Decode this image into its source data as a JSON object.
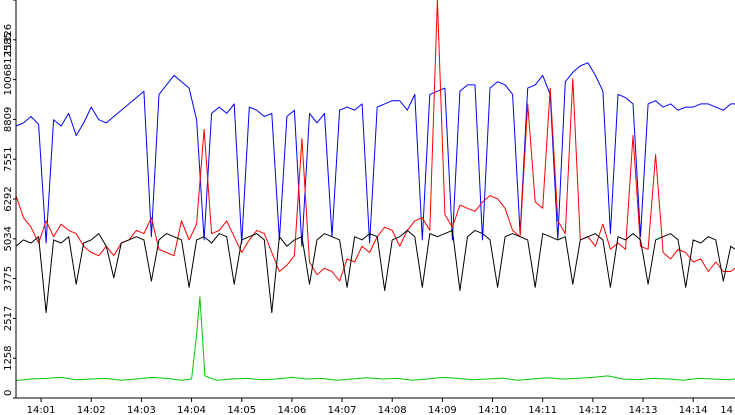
{
  "chart_data": {
    "type": "line",
    "title": "",
    "xlabel": "",
    "ylabel": "",
    "xlim": [
      "14:00:30",
      "14:14:50"
    ],
    "ylim": [
      0,
      12585
    ],
    "grid": false,
    "legend": "none",
    "x_ticks": [
      "14:01",
      "14:02",
      "14:03",
      "14:04",
      "14:05",
      "14:06",
      "14:07",
      "14:08",
      "14:09",
      "14:10",
      "14:11",
      "14:12",
      "14:13",
      "14:14",
      "14"
    ],
    "y_ticks": [
      "0",
      "1258",
      "2517",
      "3775",
      "5034",
      "6292",
      "7551",
      "8809",
      "10068",
      "11326",
      "12585"
    ],
    "series": [
      {
        "color": "#0000ff",
        "x": [
          "14:00:30",
          "14:00:39",
          "14:00:48",
          "14:00:57",
          "14:01:06",
          "14:01:15",
          "14:01:24",
          "14:01:33",
          "14:01:42",
          "14:01:51",
          "14:02:00",
          "14:02:09",
          "14:02:18",
          "14:02:27",
          "14:02:36",
          "14:02:45",
          "14:02:54",
          "14:03:03",
          "14:03:12",
          "14:03:21",
          "14:03:30",
          "14:03:39",
          "14:03:48",
          "14:03:57",
          "14:04:06",
          "14:04:15",
          "14:04:24",
          "14:04:33",
          "14:04:42",
          "14:04:51",
          "14:05:00",
          "14:05:09",
          "14:05:18",
          "14:05:27",
          "14:05:36",
          "14:05:45",
          "14:05:54",
          "14:06:03",
          "14:06:12",
          "14:06:21",
          "14:06:30",
          "14:06:39",
          "14:06:48",
          "14:06:57",
          "14:07:06",
          "14:07:15",
          "14:07:24",
          "14:07:33",
          "14:07:42",
          "14:07:51",
          "14:08:00",
          "14:08:09",
          "14:08:18",
          "14:08:27",
          "14:08:36",
          "14:08:45",
          "14:08:54",
          "14:09:03",
          "14:09:12",
          "14:09:21",
          "14:09:30",
          "14:09:39",
          "14:09:48",
          "14:09:57",
          "14:10:06",
          "14:10:15",
          "14:10:24",
          "14:10:33",
          "14:10:42",
          "14:10:51",
          "14:11:00",
          "14:11:09",
          "14:11:18",
          "14:11:27",
          "14:11:36",
          "14:11:45",
          "14:11:54",
          "14:12:03",
          "14:12:12",
          "14:12:21",
          "14:12:30",
          "14:12:39",
          "14:12:48",
          "14:12:57",
          "14:13:06",
          "14:13:15",
          "14:13:24",
          "14:13:33",
          "14:13:42",
          "14:13:51",
          "14:14:00",
          "14:14:09",
          "14:14:18",
          "14:14:27",
          "14:14:36",
          "14:14:45",
          "14:14:50"
        ],
        "values": [
          8600,
          8700,
          8900,
          8650,
          4900,
          8800,
          8600,
          9000,
          8300,
          8700,
          9200,
          8800,
          8700,
          8900,
          9100,
          9300,
          9500,
          9700,
          5100,
          9600,
          9900,
          10200,
          10000,
          9800,
          8800,
          5000,
          9000,
          9200,
          9000,
          9300,
          4900,
          9200,
          9100,
          8900,
          9000,
          5000,
          8900,
          9100,
          4800,
          9000,
          8700,
          9000,
          5100,
          9100,
          9200,
          9100,
          9300,
          4900,
          9200,
          9300,
          9400,
          9400,
          9100,
          9600,
          5000,
          9600,
          9700,
          9800,
          5000,
          9700,
          9900,
          9900,
          5000,
          9800,
          10000,
          9900,
          9600,
          5200,
          9800,
          9900,
          10200,
          9600,
          5000,
          10000,
          10300,
          10500,
          10600,
          10200,
          9700,
          5200,
          9600,
          9500,
          9300,
          5100,
          9300,
          9400,
          9200,
          9300,
          9100,
          9200,
          9200,
          9300,
          9300,
          9200,
          9100,
          9300,
          9300
        ]
      },
      {
        "color": "#ff0000",
        "x": [
          "14:00:30",
          "14:00:39",
          "14:00:48",
          "14:00:57",
          "14:01:06",
          "14:01:15",
          "14:01:24",
          "14:01:33",
          "14:01:42",
          "14:01:51",
          "14:02:00",
          "14:02:09",
          "14:02:18",
          "14:02:27",
          "14:02:36",
          "14:02:45",
          "14:02:54",
          "14:03:03",
          "14:03:12",
          "14:03:21",
          "14:03:30",
          "14:03:39",
          "14:03:48",
          "14:03:57",
          "14:04:06",
          "14:04:15",
          "14:04:24",
          "14:04:33",
          "14:04:42",
          "14:04:51",
          "14:05:00",
          "14:05:09",
          "14:05:18",
          "14:05:27",
          "14:05:36",
          "14:05:45",
          "14:05:54",
          "14:06:03",
          "14:06:12",
          "14:06:21",
          "14:06:30",
          "14:06:39",
          "14:06:48",
          "14:06:57",
          "14:07:06",
          "14:07:15",
          "14:07:24",
          "14:07:33",
          "14:07:42",
          "14:07:51",
          "14:08:00",
          "14:08:09",
          "14:08:18",
          "14:08:27",
          "14:08:36",
          "14:08:45",
          "14:08:54",
          "14:09:03",
          "14:09:12",
          "14:09:21",
          "14:09:30",
          "14:09:39",
          "14:09:48",
          "14:09:57",
          "14:10:06",
          "14:10:15",
          "14:10:24",
          "14:10:33",
          "14:10:42",
          "14:10:51",
          "14:11:00",
          "14:11:09",
          "14:11:18",
          "14:11:27",
          "14:11:36",
          "14:11:45",
          "14:11:54",
          "14:12:03",
          "14:12:12",
          "14:12:21",
          "14:12:30",
          "14:12:39",
          "14:12:48",
          "14:12:57",
          "14:13:06",
          "14:13:15",
          "14:13:24",
          "14:13:33",
          "14:13:42",
          "14:13:51",
          "14:14:00",
          "14:14:09",
          "14:14:18",
          "14:14:27",
          "14:14:36",
          "14:14:45",
          "14:14:50"
        ],
        "values": [
          6400,
          5700,
          5400,
          4900,
          5600,
          5100,
          5500,
          5300,
          5200,
          4800,
          4600,
          4500,
          4800,
          4500,
          4900,
          5000,
          5300,
          5200,
          5700,
          4700,
          4600,
          4500,
          5600,
          5000,
          5500,
          8500,
          5200,
          5300,
          5600,
          5100,
          4600,
          5000,
          5300,
          5200,
          4600,
          4000,
          4200,
          4500,
          8200,
          4300,
          3900,
          4100,
          4000,
          3700,
          4400,
          4300,
          4800,
          4600,
          5100,
          5400,
          5300,
          4800,
          5300,
          5600,
          5700,
          5300,
          12600,
          5800,
          5400,
          6100,
          6000,
          5900,
          6200,
          6400,
          6300,
          6000,
          5300,
          5100,
          9300,
          6200,
          6000,
          9800,
          5600,
          5200,
          10100,
          5000,
          5100,
          4800,
          5500,
          4700,
          4900,
          4700,
          8300,
          4800,
          4700,
          7700,
          4600,
          4400,
          4700,
          4600,
          4300,
          4400,
          4000,
          4300,
          4000,
          4000,
          4100
        ]
      },
      {
        "color": "#000000",
        "x": [
          "14:00:30",
          "14:00:39",
          "14:00:48",
          "14:00:57",
          "14:01:06",
          "14:01:15",
          "14:01:24",
          "14:01:33",
          "14:01:42",
          "14:01:51",
          "14:02:00",
          "14:02:09",
          "14:02:18",
          "14:02:27",
          "14:02:36",
          "14:02:45",
          "14:02:54",
          "14:03:03",
          "14:03:12",
          "14:03:21",
          "14:03:30",
          "14:03:39",
          "14:03:48",
          "14:03:57",
          "14:04:06",
          "14:04:15",
          "14:04:24",
          "14:04:33",
          "14:04:42",
          "14:04:51",
          "14:05:00",
          "14:05:09",
          "14:05:18",
          "14:05:27",
          "14:05:36",
          "14:05:45",
          "14:05:54",
          "14:06:03",
          "14:06:12",
          "14:06:21",
          "14:06:30",
          "14:06:39",
          "14:06:48",
          "14:06:57",
          "14:07:06",
          "14:07:15",
          "14:07:24",
          "14:07:33",
          "14:07:42",
          "14:07:51",
          "14:08:00",
          "14:08:09",
          "14:08:18",
          "14:08:27",
          "14:08:36",
          "14:08:45",
          "14:08:54",
          "14:09:03",
          "14:09:12",
          "14:09:21",
          "14:09:30",
          "14:09:39",
          "14:09:48",
          "14:09:57",
          "14:10:06",
          "14:10:15",
          "14:10:24",
          "14:10:33",
          "14:10:42",
          "14:10:51",
          "14:11:00",
          "14:11:09",
          "14:11:18",
          "14:11:27",
          "14:11:36",
          "14:11:45",
          "14:11:54",
          "14:12:03",
          "14:12:12",
          "14:12:21",
          "14:12:30",
          "14:12:39",
          "14:12:48",
          "14:12:57",
          "14:13:06",
          "14:13:15",
          "14:13:24",
          "14:13:33",
          "14:13:42",
          "14:13:51",
          "14:14:00",
          "14:14:09",
          "14:14:18",
          "14:14:27",
          "14:14:36",
          "14:14:45",
          "14:14:50"
        ],
        "values": [
          4800,
          5000,
          4900,
          5100,
          2700,
          5000,
          4900,
          5100,
          3600,
          4900,
          5000,
          5200,
          4800,
          3800,
          4900,
          5000,
          5100,
          5000,
          3700,
          5000,
          5200,
          5100,
          5000,
          3500,
          5000,
          5100,
          4900,
          5200,
          5100,
          3600,
          5000,
          5100,
          5200,
          5000,
          2700,
          5100,
          4800,
          5000,
          5100,
          3600,
          5000,
          5200,
          5100,
          5000,
          3500,
          5100,
          5000,
          5200,
          5100,
          3400,
          5000,
          5100,
          5300,
          5100,
          3500,
          5200,
          5100,
          5200,
          5300,
          3400,
          5100,
          5300,
          5200,
          5000,
          3500,
          5100,
          5200,
          5100,
          5000,
          3500,
          5200,
          5100,
          5000,
          5100,
          3600,
          5000,
          5100,
          5200,
          5000,
          3500,
          5100,
          5000,
          5200,
          5000,
          3600,
          5000,
          5100,
          5200,
          5000,
          3500,
          5000,
          4900,
          5100,
          5000,
          3700,
          4800,
          4700
        ]
      },
      {
        "color": "#00cc00",
        "x": [
          "14:00:30",
          "14:00:48",
          "14:01:06",
          "14:01:24",
          "14:01:42",
          "14:02:00",
          "14:02:18",
          "14:02:36",
          "14:02:54",
          "14:03:12",
          "14:03:30",
          "14:03:48",
          "14:04:00",
          "14:04:06",
          "14:04:10",
          "14:04:16",
          "14:04:30",
          "14:04:48",
          "14:05:06",
          "14:05:24",
          "14:05:42",
          "14:06:00",
          "14:06:18",
          "14:06:36",
          "14:06:54",
          "14:07:12",
          "14:07:30",
          "14:07:48",
          "14:08:06",
          "14:08:24",
          "14:08:42",
          "14:09:00",
          "14:09:18",
          "14:09:36",
          "14:09:54",
          "14:10:12",
          "14:10:30",
          "14:10:48",
          "14:11:06",
          "14:11:24",
          "14:11:42",
          "14:12:00",
          "14:12:18",
          "14:12:36",
          "14:12:54",
          "14:13:12",
          "14:13:30",
          "14:13:48",
          "14:14:06",
          "14:14:24",
          "14:14:42",
          "14:14:50"
        ],
        "values": [
          550,
          600,
          620,
          650,
          580,
          600,
          620,
          560,
          600,
          650,
          620,
          560,
          600,
          2000,
          3200,
          700,
          560,
          600,
          620,
          580,
          600,
          650,
          600,
          620,
          560,
          600,
          640,
          600,
          620,
          560,
          600,
          650,
          620,
          580,
          600,
          630,
          560,
          600,
          640,
          600,
          620,
          650,
          700,
          600,
          580,
          620,
          600,
          560,
          620,
          600,
          580,
          600
        ]
      }
    ]
  }
}
